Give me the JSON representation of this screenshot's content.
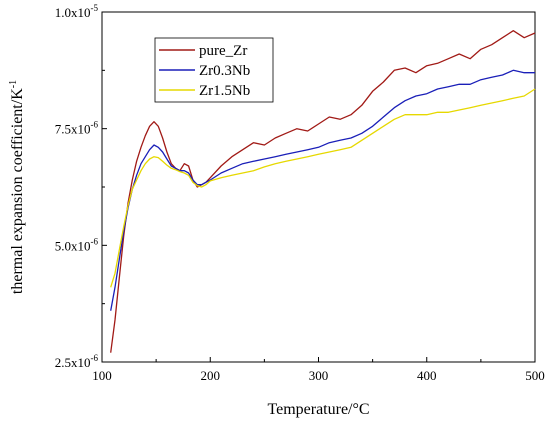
{
  "chart_data": {
    "type": "line",
    "title": "",
    "xlabel": "Temperature/°C",
    "ylabel": "thermal expansion coefficient/K",
    "ylabel_sup": "-1",
    "xlim": [
      100,
      500
    ],
    "ylim": [
      2.5e-06,
      1e-05
    ],
    "x_ticks": [
      100,
      200,
      300,
      400,
      500
    ],
    "y_ticks": [
      {
        "value": 2.5e-06,
        "mantissa": "2.5x10",
        "exp": "-6"
      },
      {
        "value": 5e-06,
        "mantissa": "5.0x10",
        "exp": "-6"
      },
      {
        "value": 7.5e-06,
        "mantissa": "7.5x10",
        "exp": "-6"
      },
      {
        "value": 1e-05,
        "mantissa": "1.0x10",
        "exp": "-5"
      }
    ],
    "grid": false,
    "legend": "top-left",
    "series": [
      {
        "name": "pure_Zr",
        "color": "#a11a16",
        "x": [
          108,
          112,
          116,
          120,
          124,
          128,
          132,
          136,
          140,
          144,
          148,
          152,
          156,
          160,
          164,
          168,
          172,
          176,
          180,
          184,
          188,
          192,
          196,
          200,
          210,
          220,
          230,
          240,
          250,
          260,
          270,
          280,
          290,
          300,
          310,
          320,
          330,
          340,
          350,
          360,
          370,
          380,
          390,
          400,
          410,
          420,
          430,
          440,
          450,
          460,
          470,
          480,
          490,
          500
        ],
        "y": [
          2.7e-06,
          3.4e-06,
          4.3e-06,
          5.2e-06,
          5.9e-06,
          6.4e-06,
          6.8e-06,
          7.1e-06,
          7.35e-06,
          7.55e-06,
          7.65e-06,
          7.55e-06,
          7.3e-06,
          7e-06,
          6.75e-06,
          6.65e-06,
          6.6e-06,
          6.75e-06,
          6.7e-06,
          6.4e-06,
          6.25e-06,
          6.3e-06,
          6.35e-06,
          6.45e-06,
          6.7e-06,
          6.9e-06,
          7.05e-06,
          7.2e-06,
          7.15e-06,
          7.3e-06,
          7.4e-06,
          7.5e-06,
          7.45e-06,
          7.6e-06,
          7.75e-06,
          7.7e-06,
          7.8e-06,
          8e-06,
          8.3e-06,
          8.5e-06,
          8.75e-06,
          8.8e-06,
          8.7e-06,
          8.85e-06,
          8.9e-06,
          9e-06,
          9.1e-06,
          9e-06,
          9.2e-06,
          9.3e-06,
          9.45e-06,
          9.6e-06,
          9.45e-06,
          9.55e-06
        ]
      },
      {
        "name": "Zr0.3Nb",
        "color": "#1a1fb8",
        "x": [
          108,
          112,
          116,
          120,
          124,
          128,
          132,
          136,
          140,
          144,
          148,
          152,
          156,
          160,
          164,
          168,
          172,
          176,
          180,
          184,
          188,
          192,
          196,
          200,
          210,
          220,
          230,
          240,
          250,
          260,
          270,
          280,
          290,
          300,
          310,
          320,
          330,
          340,
          350,
          360,
          370,
          380,
          390,
          400,
          410,
          420,
          430,
          440,
          450,
          460,
          470,
          480,
          490,
          500
        ],
        "y": [
          3.6e-06,
          4.1e-06,
          4.7e-06,
          5.3e-06,
          5.8e-06,
          6.2e-06,
          6.5e-06,
          6.75e-06,
          6.9e-06,
          7.05e-06,
          7.15e-06,
          7.1e-06,
          7e-06,
          6.85e-06,
          6.7e-06,
          6.65e-06,
          6.6e-06,
          6.6e-06,
          6.55e-06,
          6.4e-06,
          6.3e-06,
          6.3e-06,
          6.35e-06,
          6.4e-06,
          6.55e-06,
          6.65e-06,
          6.75e-06,
          6.8e-06,
          6.85e-06,
          6.9e-06,
          6.95e-06,
          7e-06,
          7.05e-06,
          7.1e-06,
          7.2e-06,
          7.25e-06,
          7.3e-06,
          7.4e-06,
          7.55e-06,
          7.75e-06,
          7.95e-06,
          8.1e-06,
          8.2e-06,
          8.25e-06,
          8.35e-06,
          8.4e-06,
          8.45e-06,
          8.45e-06,
          8.55e-06,
          8.6e-06,
          8.65e-06,
          8.75e-06,
          8.7e-06,
          8.7e-06
        ]
      },
      {
        "name": "Zr1.5Nb",
        "color": "#e6d800",
        "x": [
          108,
          112,
          116,
          120,
          124,
          128,
          132,
          136,
          140,
          144,
          148,
          152,
          156,
          160,
          164,
          168,
          172,
          176,
          180,
          184,
          188,
          192,
          196,
          200,
          210,
          220,
          230,
          240,
          250,
          260,
          270,
          280,
          290,
          300,
          310,
          320,
          330,
          340,
          350,
          360,
          370,
          380,
          390,
          400,
          410,
          420,
          430,
          440,
          450,
          460,
          470,
          480,
          490,
          500
        ],
        "y": [
          4.1e-06,
          4.4e-06,
          4.9e-06,
          5.4e-06,
          5.85e-06,
          6.2e-06,
          6.4e-06,
          6.6e-06,
          6.75e-06,
          6.85e-06,
          6.9e-06,
          6.88e-06,
          6.8e-06,
          6.72e-06,
          6.65e-06,
          6.62e-06,
          6.58e-06,
          6.55e-06,
          6.5e-06,
          6.35e-06,
          6.28e-06,
          6.25e-06,
          6.3e-06,
          6.38e-06,
          6.45e-06,
          6.5e-06,
          6.55e-06,
          6.6e-06,
          6.68e-06,
          6.75e-06,
          6.8e-06,
          6.85e-06,
          6.9e-06,
          6.95e-06,
          7e-06,
          7.05e-06,
          7.1e-06,
          7.25e-06,
          7.4e-06,
          7.55e-06,
          7.7e-06,
          7.8e-06,
          7.8e-06,
          7.8e-06,
          7.85e-06,
          7.85e-06,
          7.9e-06,
          7.95e-06,
          8e-06,
          8.05e-06,
          8.1e-06,
          8.15e-06,
          8.2e-06,
          8.35e-06
        ]
      }
    ]
  }
}
